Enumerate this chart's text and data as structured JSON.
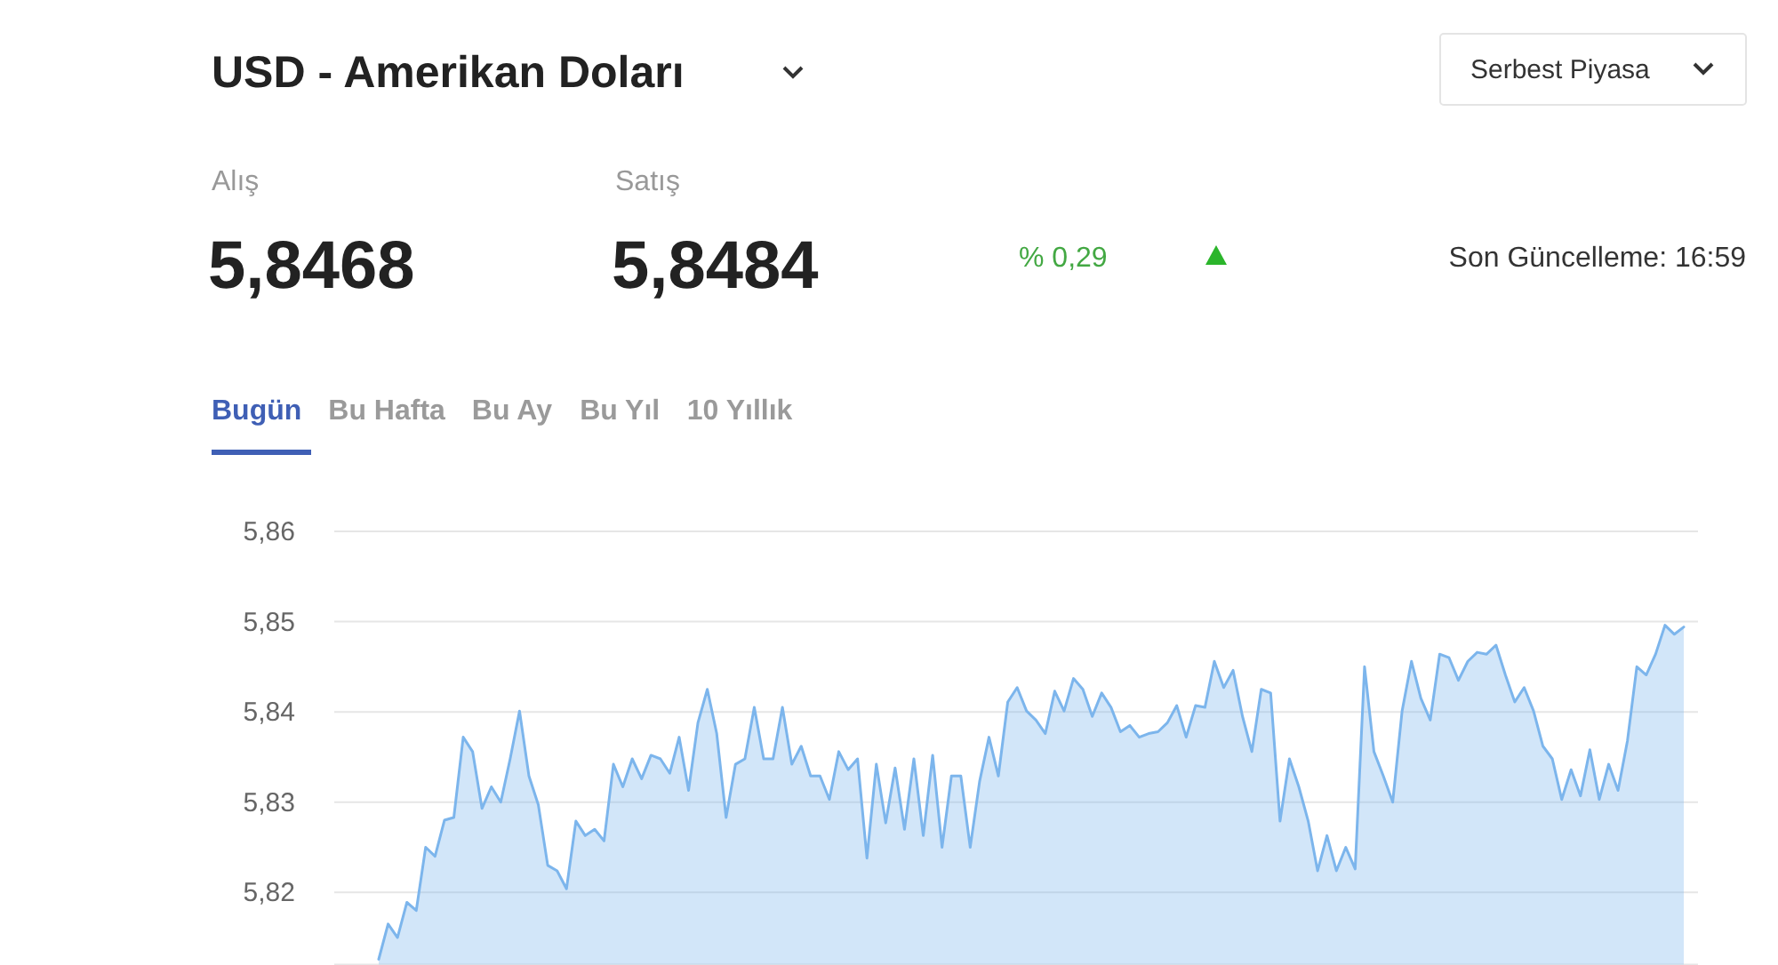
{
  "chart_data": {
    "type": "area",
    "title": "USD - Amerikan Doları",
    "annotations": [
      "Alış",
      "5,8468",
      "Satış",
      "5,8484",
      "% 0,29",
      "Son Güncelleme: 16:59",
      "Serbest Piyasa",
      "Bugün",
      "Bu Hafta",
      "Bu Ay",
      "Bu Yıl",
      "10 Yıllık"
    ],
    "categories": [
      null,
      null,
      null,
      null,
      null,
      null,
      null,
      null,
      null,
      null,
      null,
      null,
      null,
      null,
      null,
      null,
      null,
      null,
      null,
      null,
      null,
      null,
      null,
      null,
      null,
      null,
      null,
      null,
      null,
      null,
      null,
      null,
      null,
      null,
      null,
      null,
      null,
      null,
      null,
      null,
      null,
      null,
      null,
      null,
      null,
      null,
      null,
      null,
      null,
      null,
      null,
      null,
      null,
      null,
      null,
      null,
      null,
      null,
      null,
      null,
      null,
      null,
      null,
      null,
      null,
      null,
      null,
      null,
      null,
      null,
      null,
      null,
      null,
      null,
      null,
      null,
      null,
      null,
      null,
      null,
      null,
      null,
      null,
      null,
      null,
      null,
      null,
      null,
      null,
      null,
      null,
      null,
      null,
      null,
      null,
      null,
      null,
      null,
      null,
      null,
      null,
      null,
      null,
      null,
      null,
      null,
      null,
      null,
      null,
      null,
      null,
      null,
      null,
      null,
      null,
      null,
      null,
      null,
      null,
      null,
      null,
      null,
      null,
      null,
      null,
      null,
      null,
      null,
      null,
      null,
      null,
      null,
      null,
      null,
      null,
      null,
      null,
      null,
      null,
      null
    ],
    "series": [
      {
        "color": "#7cb5ec",
        "values": [
          5.8126,
          5.8165,
          5.815,
          5.8189,
          5.818,
          5.825,
          5.824,
          5.828,
          5.8283,
          5.8372,
          5.8356,
          5.8293,
          5.8317,
          5.83,
          5.8348,
          5.8401,
          5.8329,
          5.8297,
          5.823,
          5.8224,
          5.8204,
          5.8279,
          5.8263,
          5.827,
          5.8257,
          5.8342,
          5.8317,
          5.8348,
          5.8326,
          5.8352,
          5.8348,
          5.8332,
          5.8372,
          5.8313,
          5.8388,
          5.8425,
          5.8376,
          5.8283,
          5.8342,
          5.8348,
          5.8405,
          5.8348,
          5.8348,
          5.8405,
          5.8342,
          5.8362,
          5.8329,
          5.8329,
          5.8303,
          5.8356,
          5.8336,
          5.8348,
          5.8238,
          5.8342,
          5.8277,
          5.8338,
          5.827,
          5.8348,
          5.8263,
          5.8352,
          5.825,
          5.8329,
          5.8329,
          5.825,
          5.8323,
          5.8372,
          5.8329,
          5.8411,
          5.8427,
          5.8401,
          5.8391,
          5.8376,
          5.8423,
          5.8401,
          5.8437,
          5.8425,
          5.8395,
          5.8421,
          5.8405,
          5.8378,
          5.8385,
          5.8372,
          5.8376,
          5.8378,
          5.8388,
          5.8407,
          5.8372,
          5.8407,
          5.8405,
          5.8456,
          5.8427,
          5.8446,
          5.8395,
          5.8356,
          5.8425,
          5.8421,
          5.8279,
          5.8348,
          5.8317,
          5.8279,
          5.8224,
          5.8263,
          5.8224,
          5.825,
          5.8226,
          5.845,
          5.8356,
          5.8329,
          5.83,
          5.8401,
          5.8456,
          5.8415,
          5.8391,
          5.8464,
          5.846,
          5.8435,
          5.8456,
          5.8466,
          5.8464,
          5.8474,
          5.8441,
          5.8411,
          5.8427,
          5.8401,
          5.8362,
          5.8348,
          5.8303,
          5.8336,
          5.8307,
          5.8358,
          5.8303,
          5.8342,
          5.8313,
          5.8368,
          5.845,
          5.8441,
          5.8464,
          5.8496,
          5.8486,
          5.8494
        ]
      }
    ],
    "ylim": [
      5.812,
      5.86
    ],
    "yticks": [
      {
        "value": 5.82,
        "label": "5,82"
      },
      {
        "value": 5.83,
        "label": "5,83"
      },
      {
        "value": 5.84,
        "label": "5,84"
      },
      {
        "value": 5.85,
        "label": "5,85"
      },
      {
        "value": 5.86,
        "label": "5,86"
      }
    ],
    "grid": "y"
  }
}
